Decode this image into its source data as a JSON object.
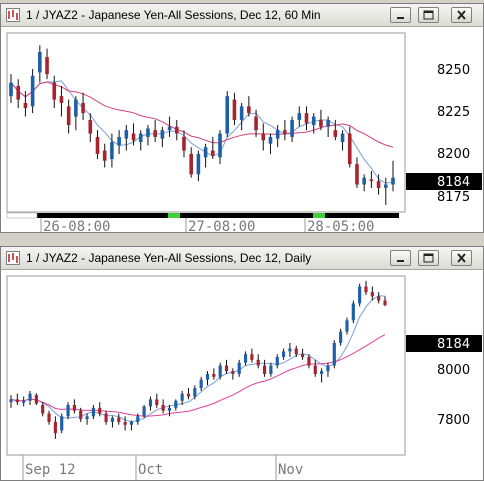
{
  "windows": [
    {
      "title": "1 / JYAZ2 - Japanese Yen-All Sessions, Dec 12, 60 Min",
      "current_price": "8184",
      "price_axis_labels": [
        "8250",
        "8225",
        "8200",
        "8175"
      ],
      "time_labels": [
        "26-08:00",
        "27-08:00",
        "28-05:00"
      ]
    },
    {
      "title": "1 / JYAZ2 - Japanese Yen-All Sessions, Dec 12, Daily",
      "current_price": "8184",
      "price_axis_labels": [
        "8000",
        "7800"
      ],
      "time_labels": [
        "Sep 12",
        "Oct",
        "Nov"
      ]
    }
  ],
  "chart_data": [
    {
      "type": "candlestick",
      "title": "1 / JYAZ2 - Japanese Yen-All Sessions, Dec 12, 60 Min",
      "ylim": [
        8165,
        8268
      ],
      "yticks": [
        8250,
        8225,
        8200,
        8175
      ],
      "x_ticks": [
        "26-08:00",
        "27-08:00",
        "28-05:00"
      ],
      "last_price": 8184,
      "grid": false,
      "ohlc": [
        [
          8232,
          8245,
          8228,
          8240
        ],
        [
          8238,
          8242,
          8225,
          8230
        ],
        [
          8228,
          8235,
          8220,
          8225
        ],
        [
          8226,
          8248,
          8222,
          8244
        ],
        [
          8246,
          8262,
          8240,
          8258
        ],
        [
          8255,
          8260,
          8242,
          8245
        ],
        [
          8240,
          8244,
          8225,
          8230
        ],
        [
          8232,
          8238,
          8220,
          8228
        ],
        [
          8226,
          8230,
          8210,
          8215
        ],
        [
          8220,
          8232,
          8212,
          8230
        ],
        [
          8228,
          8234,
          8218,
          8222
        ],
        [
          8218,
          8222,
          8205,
          8210
        ],
        [
          8208,
          8212,
          8195,
          8198
        ],
        [
          8200,
          8204,
          8190,
          8194
        ],
        [
          8195,
          8210,
          8190,
          8205
        ],
        [
          8203,
          8212,
          8198,
          8208
        ],
        [
          8207,
          8215,
          8200,
          8212
        ],
        [
          8210,
          8216,
          8203,
          8206
        ],
        [
          8205,
          8212,
          8200,
          8210
        ],
        [
          8208,
          8215,
          8203,
          8213
        ],
        [
          8212,
          8218,
          8205,
          8208
        ],
        [
          8207,
          8214,
          8202,
          8212
        ],
        [
          8212,
          8220,
          8208,
          8214
        ],
        [
          8214,
          8218,
          8206,
          8210
        ],
        [
          8208,
          8212,
          8196,
          8200
        ],
        [
          8198,
          8202,
          8184,
          8186
        ],
        [
          8186,
          8200,
          8182,
          8198
        ],
        [
          8196,
          8204,
          8190,
          8202
        ],
        [
          8200,
          8208,
          8195,
          8197
        ],
        [
          8196,
          8212,
          8192,
          8210
        ],
        [
          8210,
          8235,
          8208,
          8232
        ],
        [
          8230,
          8234,
          8215,
          8218
        ],
        [
          8218,
          8228,
          8212,
          8226
        ],
        [
          8226,
          8232,
          8220,
          8222
        ],
        [
          8220,
          8224,
          8208,
          8212
        ],
        [
          8210,
          8216,
          8200,
          8206
        ],
        [
          8204,
          8210,
          8198,
          8208
        ],
        [
          8207,
          8215,
          8202,
          8212
        ],
        [
          8212,
          8218,
          8206,
          8210
        ],
        [
          8208,
          8220,
          8205,
          8218
        ],
        [
          8218,
          8226,
          8214,
          8222
        ],
        [
          8222,
          8226,
          8212,
          8216
        ],
        [
          8215,
          8222,
          8210,
          8220
        ],
        [
          8218,
          8224,
          8212,
          8214
        ],
        [
          8214,
          8220,
          8208,
          8218
        ],
        [
          8212,
          8218,
          8206,
          8208
        ],
        [
          8205,
          8212,
          8200,
          8210
        ],
        [
          8210,
          8214,
          8190,
          8192
        ],
        [
          8192,
          8196,
          8178,
          8180
        ],
        [
          8180,
          8186,
          8176,
          8184
        ],
        [
          8183,
          8188,
          8178,
          8182
        ],
        [
          8182,
          8186,
          8174,
          8178
        ],
        [
          8178,
          8184,
          8168,
          8180
        ],
        [
          8180,
          8194,
          8176,
          8184
        ]
      ],
      "ma_fast_color": "#7aa0d8",
      "ma_slow_color": "#d0407a"
    },
    {
      "type": "candlestick",
      "title": "1 / JYAZ2 - Japanese Yen-All Sessions, Dec 12, Daily",
      "ylim": [
        7660,
        8280
      ],
      "yticks": [
        8000,
        7800
      ],
      "x_ticks": [
        "Sep 12",
        "Oct",
        "Nov"
      ],
      "last_price": 8184,
      "grid": false,
      "ohlc": [
        [
          7840,
          7865,
          7820,
          7850
        ],
        [
          7850,
          7870,
          7830,
          7840
        ],
        [
          7838,
          7860,
          7825,
          7845
        ],
        [
          7845,
          7880,
          7830,
          7870
        ],
        [
          7865,
          7872,
          7830,
          7835
        ],
        [
          7830,
          7840,
          7790,
          7800
        ],
        [
          7800,
          7810,
          7760,
          7770
        ],
        [
          7770,
          7790,
          7710,
          7730
        ],
        [
          7740,
          7800,
          7730,
          7790
        ],
        [
          7790,
          7840,
          7780,
          7830
        ],
        [
          7830,
          7850,
          7800,
          7810
        ],
        [
          7810,
          7820,
          7770,
          7780
        ],
        [
          7780,
          7800,
          7760,
          7790
        ],
        [
          7790,
          7830,
          7780,
          7820
        ],
        [
          7820,
          7840,
          7790,
          7800
        ],
        [
          7800,
          7810,
          7760,
          7770
        ],
        [
          7770,
          7790,
          7750,
          7785
        ],
        [
          7785,
          7800,
          7760,
          7770
        ],
        [
          7770,
          7790,
          7740,
          7760
        ],
        [
          7760,
          7775,
          7740,
          7770
        ],
        [
          7770,
          7800,
          7760,
          7790
        ],
        [
          7790,
          7830,
          7785,
          7825
        ],
        [
          7825,
          7860,
          7810,
          7850
        ],
        [
          7850,
          7870,
          7820,
          7830
        ],
        [
          7830,
          7850,
          7800,
          7810
        ],
        [
          7810,
          7830,
          7790,
          7820
        ],
        [
          7820,
          7850,
          7810,
          7845
        ],
        [
          7845,
          7880,
          7830,
          7870
        ],
        [
          7870,
          7890,
          7850,
          7860
        ],
        [
          7860,
          7900,
          7850,
          7890
        ],
        [
          7890,
          7930,
          7880,
          7920
        ],
        [
          7920,
          7950,
          7900,
          7940
        ],
        [
          7940,
          7960,
          7920,
          7930
        ],
        [
          7930,
          7980,
          7920,
          7970
        ],
        [
          7970,
          7990,
          7940,
          7950
        ],
        [
          7950,
          7960,
          7920,
          7940
        ],
        [
          7940,
          7990,
          7930,
          7980
        ],
        [
          7980,
          8020,
          7970,
          8010
        ],
        [
          8010,
          8030,
          7980,
          7990
        ],
        [
          7990,
          8010,
          7960,
          7970
        ],
        [
          7970,
          7990,
          7930,
          7940
        ],
        [
          7940,
          7980,
          7930,
          7970
        ],
        [
          7970,
          8010,
          7960,
          8000
        ],
        [
          8000,
          8030,
          7990,
          8020
        ],
        [
          8020,
          8050,
          8000,
          8030
        ],
        [
          8030,
          8040,
          8000,
          8010
        ],
        [
          8010,
          8030,
          7990,
          8000
        ],
        [
          8000,
          8010,
          7960,
          7970
        ],
        [
          7970,
          7990,
          7930,
          7940
        ],
        [
          7940,
          7960,
          7910,
          7950
        ],
        [
          7950,
          7980,
          7930,
          7970
        ],
        [
          7970,
          8060,
          7960,
          8050
        ],
        [
          8050,
          8100,
          8040,
          8090
        ],
        [
          8090,
          8140,
          8080,
          8130
        ],
        [
          8130,
          8200,
          8120,
          8190
        ],
        [
          8190,
          8260,
          8180,
          8250
        ],
        [
          8250,
          8270,
          8220,
          8230
        ],
        [
          8230,
          8250,
          8200,
          8215
        ],
        [
          8215,
          8230,
          8190,
          8200
        ],
        [
          8200,
          8215,
          8180,
          8184
        ]
      ],
      "ma_fast_color": "#7aa0d8",
      "ma_slow_color": "#e0409a"
    }
  ],
  "colors": {
    "up_candle": "#1f5fa8",
    "down_candle": "#a8232e",
    "price_box_bg": "#000000",
    "time_segment_active": "#3cd13c"
  }
}
